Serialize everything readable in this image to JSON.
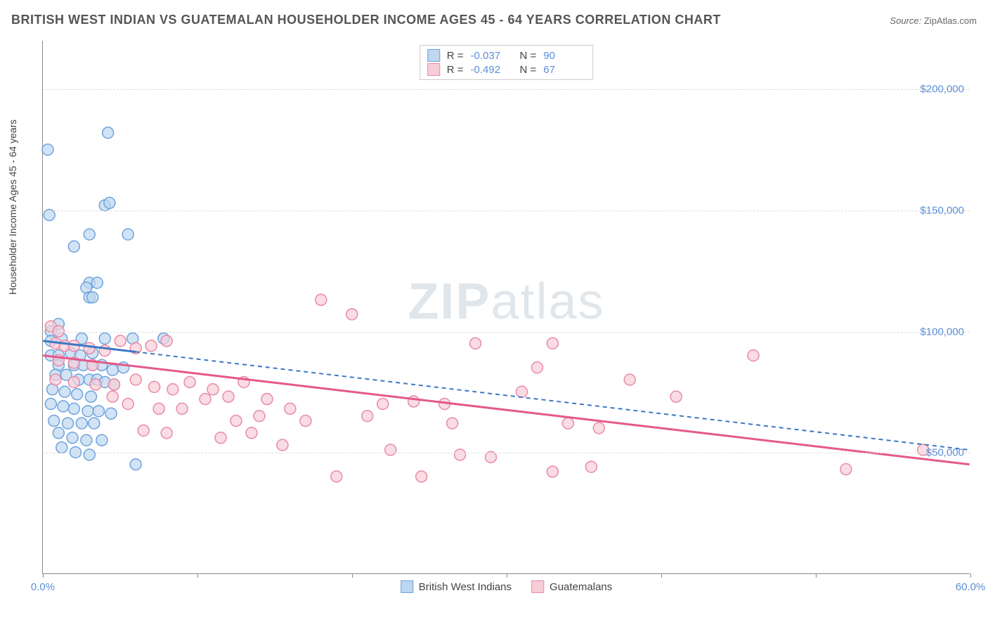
{
  "header": {
    "title": "BRITISH WEST INDIAN VS GUATEMALAN HOUSEHOLDER INCOME AGES 45 - 64 YEARS CORRELATION CHART",
    "source_label": "Source:",
    "source_value": "ZipAtlas.com"
  },
  "chart": {
    "type": "scatter",
    "y_axis_label": "Householder Income Ages 45 - 64 years",
    "xlim": [
      0,
      60
    ],
    "ylim": [
      0,
      220000
    ],
    "y_ticks": [
      50000,
      100000,
      150000,
      200000
    ],
    "y_tick_labels": [
      "$50,000",
      "$100,000",
      "$150,000",
      "$200,000"
    ],
    "x_ticks": [
      0,
      10,
      20,
      30,
      40,
      50,
      60
    ],
    "x_tick_labels_shown": {
      "0": "0.0%",
      "60": "60.0%"
    },
    "grid_color": "#dddddd",
    "axis_color": "#888888",
    "tick_label_color": "#5b8fd6",
    "background_color": "#ffffff",
    "marker_radius": 8,
    "marker_stroke_width": 1.5,
    "watermark": {
      "zip": "ZIP",
      "atlas": "atlas"
    },
    "series": [
      {
        "id": "bwi",
        "label": "British West Indians",
        "fill": "#bdd7f0",
        "stroke": "#6ea3dd",
        "line_color": "#3b78c4",
        "line_dash": "6,5",
        "line_width": 2,
        "R": "-0.037",
        "N": "90",
        "regression": {
          "x1": 0,
          "y1": 96000,
          "x2": 60,
          "y2": 51000
        },
        "solid_segment": {
          "x1": 0,
          "y1": 96000,
          "x2": 6,
          "y2": 91500
        },
        "points": [
          [
            0.3,
            175000
          ],
          [
            4.2,
            182000
          ],
          [
            0.4,
            148000
          ],
          [
            4.0,
            152000
          ],
          [
            4.3,
            153000
          ],
          [
            3.0,
            140000
          ],
          [
            5.5,
            140000
          ],
          [
            2.0,
            135000
          ],
          [
            3.0,
            120000
          ],
          [
            3.5,
            120000
          ],
          [
            2.8,
            118000
          ],
          [
            3.0,
            114000
          ],
          [
            3.2,
            114000
          ],
          [
            0.5,
            100000
          ],
          [
            1.0,
            103000
          ],
          [
            0.5,
            96000
          ],
          [
            1.2,
            97000
          ],
          [
            2.5,
            97000
          ],
          [
            4.0,
            97000
          ],
          [
            5.8,
            97000
          ],
          [
            7.8,
            97000
          ],
          [
            0.5,
            90000
          ],
          [
            1.0,
            90000
          ],
          [
            1.8,
            91000
          ],
          [
            2.4,
            90000
          ],
          [
            3.2,
            91000
          ],
          [
            1.0,
            86000
          ],
          [
            2.0,
            86000
          ],
          [
            2.6,
            86000
          ],
          [
            3.2,
            86000
          ],
          [
            3.8,
            86000
          ],
          [
            4.5,
            84000
          ],
          [
            5.2,
            85000
          ],
          [
            0.8,
            82000
          ],
          [
            1.5,
            82000
          ],
          [
            2.3,
            80000
          ],
          [
            3.0,
            80000
          ],
          [
            3.5,
            80000
          ],
          [
            4.0,
            79000
          ],
          [
            4.6,
            78000
          ],
          [
            0.6,
            76000
          ],
          [
            1.4,
            75000
          ],
          [
            2.2,
            74000
          ],
          [
            3.1,
            73000
          ],
          [
            0.5,
            70000
          ],
          [
            1.3,
            69000
          ],
          [
            2.0,
            68000
          ],
          [
            2.9,
            67000
          ],
          [
            3.6,
            67000
          ],
          [
            4.4,
            66000
          ],
          [
            0.7,
            63000
          ],
          [
            1.6,
            62000
          ],
          [
            2.5,
            62000
          ],
          [
            3.3,
            62000
          ],
          [
            1.0,
            58000
          ],
          [
            1.9,
            56000
          ],
          [
            2.8,
            55000
          ],
          [
            3.8,
            55000
          ],
          [
            1.2,
            52000
          ],
          [
            2.1,
            50000
          ],
          [
            3.0,
            49000
          ],
          [
            6.0,
            45000
          ]
        ]
      },
      {
        "id": "gua",
        "label": "Guatemalans",
        "fill": "#f7cdd8",
        "stroke": "#e98aa5",
        "line_color": "#e5588a",
        "line_dash": "",
        "line_width": 3,
        "R": "-0.492",
        "N": "67",
        "regression": {
          "x1": 0,
          "y1": 90000,
          "x2": 60,
          "y2": 45000
        },
        "points": [
          [
            0.5,
            102000
          ],
          [
            1.0,
            100000
          ],
          [
            0.8,
            95000
          ],
          [
            1.4,
            94000
          ],
          [
            2.0,
            94000
          ],
          [
            3.0,
            93000
          ],
          [
            4.0,
            92000
          ],
          [
            5.0,
            96000
          ],
          [
            6.0,
            93000
          ],
          [
            7.0,
            94000
          ],
          [
            8.0,
            96000
          ],
          [
            1.0,
            88000
          ],
          [
            2.0,
            87000
          ],
          [
            3.2,
            86000
          ],
          [
            0.8,
            80000
          ],
          [
            2.0,
            79000
          ],
          [
            3.4,
            78000
          ],
          [
            4.6,
            78000
          ],
          [
            6.0,
            80000
          ],
          [
            7.2,
            77000
          ],
          [
            8.4,
            76000
          ],
          [
            9.5,
            79000
          ],
          [
            11,
            76000
          ],
          [
            12,
            73000
          ],
          [
            13,
            79000
          ],
          [
            14.5,
            72000
          ],
          [
            16,
            68000
          ],
          [
            17,
            63000
          ],
          [
            18,
            113000
          ],
          [
            20,
            107000
          ],
          [
            21,
            65000
          ],
          [
            22,
            70000
          ],
          [
            22.5,
            51000
          ],
          [
            24,
            71000
          ],
          [
            24.5,
            40000
          ],
          [
            26,
            70000
          ],
          [
            26.5,
            62000
          ],
          [
            27,
            49000
          ],
          [
            28,
            95000
          ],
          [
            29,
            48000
          ],
          [
            31,
            75000
          ],
          [
            32,
            85000
          ],
          [
            33,
            42000
          ],
          [
            33,
            95000
          ],
          [
            34,
            62000
          ],
          [
            35.5,
            44000
          ],
          [
            36,
            60000
          ],
          [
            38,
            80000
          ],
          [
            41,
            73000
          ],
          [
            46,
            90000
          ],
          [
            52,
            43000
          ],
          [
            57,
            51000
          ],
          [
            4.5,
            73000
          ],
          [
            5.5,
            70000
          ],
          [
            7.5,
            68000
          ],
          [
            9.0,
            68000
          ],
          [
            10.5,
            72000
          ],
          [
            12.5,
            63000
          ],
          [
            14,
            65000
          ],
          [
            6.5,
            59000
          ],
          [
            8.0,
            58000
          ],
          [
            11.5,
            56000
          ],
          [
            13.5,
            58000
          ],
          [
            15.5,
            53000
          ],
          [
            19,
            40000
          ]
        ]
      }
    ],
    "legend_top": {
      "rows": [
        {
          "series": "bwi",
          "R_key": "R =",
          "N_key": "N ="
        },
        {
          "series": "gua",
          "R_key": "R =",
          "N_key": "N ="
        }
      ]
    }
  }
}
